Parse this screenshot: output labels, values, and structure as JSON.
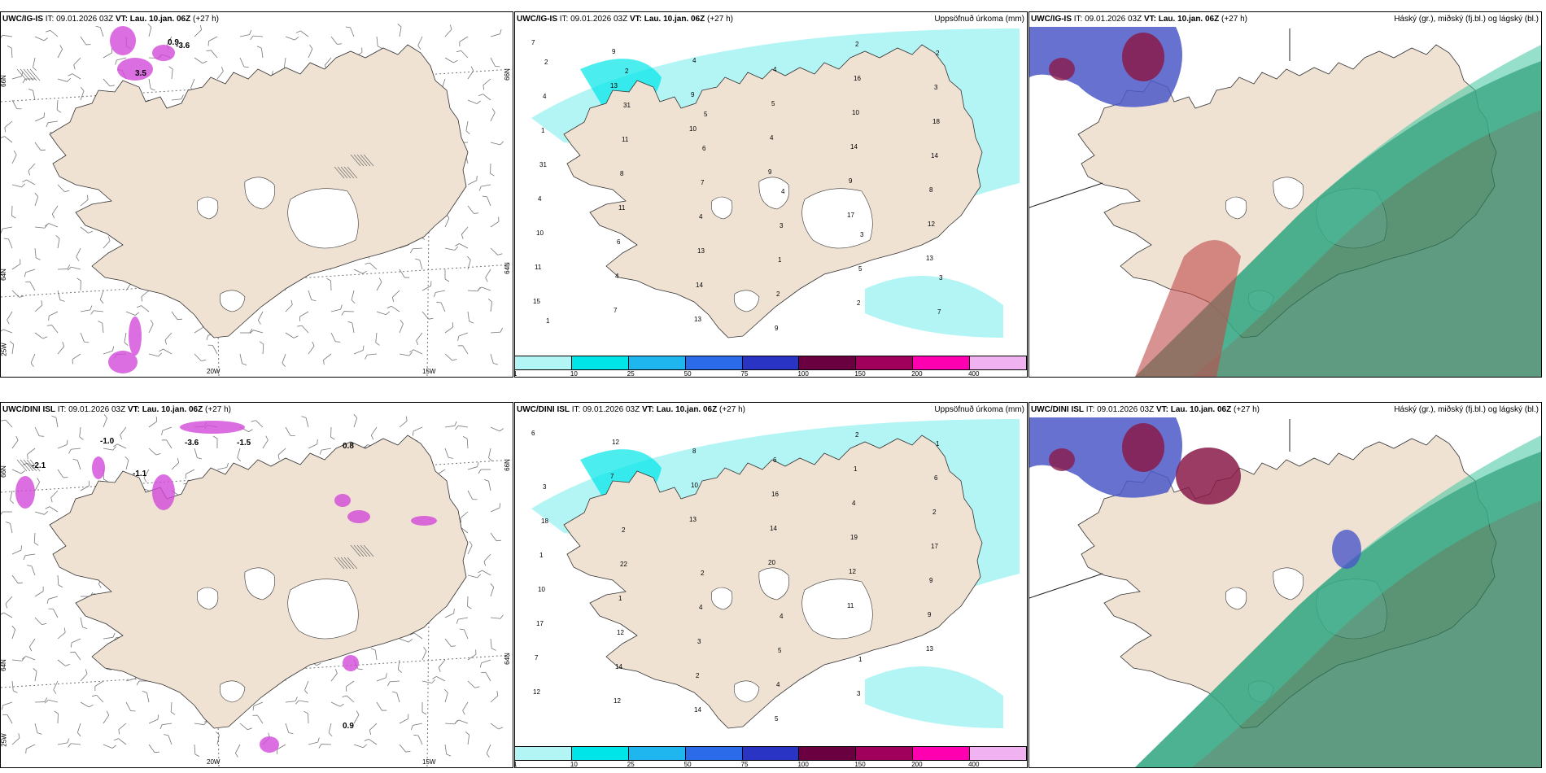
{
  "rows": [
    {
      "model": "UWC/IG-IS",
      "it_label": "IT:",
      "it_value": "09.01.2026 03Z",
      "vt_label": "VT:",
      "vt_value": "Lau. 10.jan. 06Z",
      "lead": "(+27 h)",
      "wind_labels": [
        "3.5",
        "0.9",
        "-3.6"
      ],
      "precip_numbers": [
        "7",
        "13",
        "10",
        "9",
        "17",
        "13",
        "15",
        "9",
        "9",
        "4",
        "9",
        "12",
        "11",
        "7",
        "4",
        "5",
        "14",
        "8",
        "10",
        "4",
        "13",
        "4",
        "10",
        "14",
        "4",
        "6",
        "14",
        "9",
        "16",
        "18",
        "31",
        "11",
        "13",
        "2",
        "2",
        "3",
        "1",
        "8",
        "4",
        "1",
        "2",
        "2",
        "4",
        "11",
        "7",
        "3",
        "5",
        "7",
        "2",
        "31",
        "6",
        "4",
        "3",
        "3",
        "1",
        "2",
        "5"
      ]
    },
    {
      "model": "UWC/DINI ISL",
      "it_label": "IT:",
      "it_value": "09.01.2026 03Z",
      "vt_label": "VT:",
      "vt_value": "Lau. 10.jan. 06Z",
      "lead": "(+27 h)",
      "wind_labels": [
        "-1.0",
        "-3.6",
        "-1.5",
        "-2.1",
        "-1.1",
        "0.8",
        "0.9"
      ],
      "precip_numbers": [
        "6",
        "7",
        "13",
        "20",
        "11",
        "13",
        "12",
        "12",
        "10",
        "14",
        "12",
        "9",
        "7",
        "12",
        "8",
        "16",
        "19",
        "9",
        "17",
        "14",
        "14",
        "6",
        "4",
        "17",
        "10",
        "12",
        "2",
        "5",
        "1",
        "2",
        "1",
        "1",
        "3",
        "4",
        "2",
        "6",
        "18",
        "22",
        "4",
        "5",
        "3",
        "1",
        "3",
        "2",
        "2",
        "4",
        "1"
      ]
    }
  ],
  "precip_title": "Uppsöfnuð úrkoma (mm)",
  "cloud_title": "Háský (gr.), miðský (fj.bl.) og lágský (bl.)",
  "legend": {
    "colors": [
      "#b3f5f5",
      "#00e5e8",
      "#1fb6ef",
      "#2b6ae8",
      "#2a34c4",
      "#6a0040",
      "#a0005c",
      "#ff00b0",
      "#f0b2f0"
    ],
    "ticks": [
      "1",
      "10",
      "25",
      "50",
      "75",
      "100",
      "150",
      "200",
      "400"
    ]
  },
  "map_labels": {
    "lon_20": "20W",
    "lon_15": "15W",
    "lat_66": "66N",
    "lat_64": "64N",
    "lon_25": "25W"
  }
}
